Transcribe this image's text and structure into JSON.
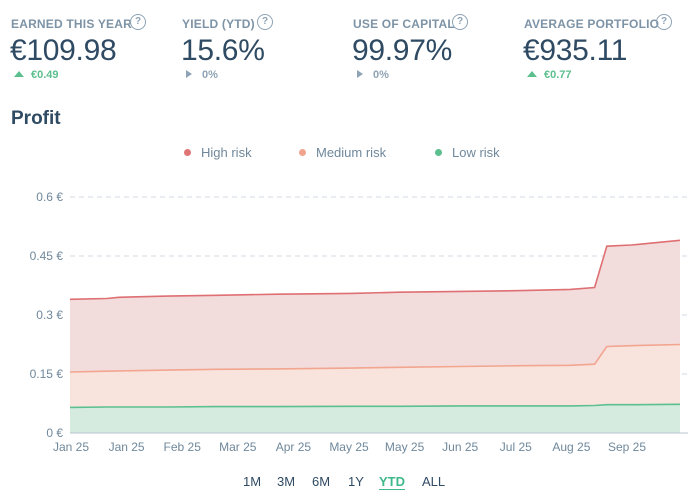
{
  "stats": [
    {
      "label": "EARNED THIS YEAR",
      "value": "€109.98",
      "change": "€0.49",
      "trend": "up"
    },
    {
      "label": "YIELD (YTD)",
      "value": "15.6%",
      "change": "0%",
      "trend": "flat"
    },
    {
      "label": "USE OF CAPITAL",
      "value": "99.97%",
      "change": "0%",
      "trend": "flat"
    },
    {
      "label": "AVERAGE PORTFOLIO",
      "value": "€935.11",
      "change": "€0.77",
      "trend": "up"
    }
  ],
  "help_glyph": "?",
  "section_title": "Profit",
  "legend": [
    {
      "label": "High risk",
      "color": "#e07575"
    },
    {
      "label": "Medium risk",
      "color": "#f0a48e"
    },
    {
      "label": "Low risk",
      "color": "#5cbf8e"
    }
  ],
  "range_buttons": [
    {
      "label": "1M",
      "active": false
    },
    {
      "label": "3M",
      "active": false
    },
    {
      "label": "6M",
      "active": false
    },
    {
      "label": "1Y",
      "active": false
    },
    {
      "label": "YTD",
      "active": true
    },
    {
      "label": "ALL",
      "active": false
    }
  ],
  "chart_data": {
    "type": "area",
    "stacked": true,
    "title": "",
    "xlabel": "",
    "ylabel": "",
    "ylim": [
      0,
      0.6
    ],
    "yticks": [
      "0 €",
      "0.15 €",
      "0.3 €",
      "0.45 €",
      "0.6 €"
    ],
    "ytick_values": [
      0,
      0.15,
      0.3,
      0.45,
      0.6
    ],
    "xticks": [
      "Jan 25",
      "Jan 25",
      "Feb 25",
      "Mar 25",
      "Apr 25",
      "May 25",
      "May 25",
      "Jun 25",
      "Jul 25",
      "Aug 25",
      "Sep 25"
    ],
    "grid": true,
    "legend_position": "top-center",
    "x": [
      0,
      6,
      8,
      16,
      24,
      34,
      46,
      54,
      64,
      74,
      82,
      86,
      88,
      92,
      100
    ],
    "series": [
      {
        "name": "Low risk",
        "color": "#5cbf8e",
        "values": [
          0.065,
          0.066,
          0.066,
          0.066,
          0.067,
          0.067,
          0.068,
          0.068,
          0.069,
          0.069,
          0.069,
          0.07,
          0.072,
          0.072,
          0.073
        ]
      },
      {
        "name": "Medium risk",
        "color": "#f0a48e",
        "values": [
          0.155,
          0.157,
          0.158,
          0.16,
          0.162,
          0.163,
          0.165,
          0.167,
          0.169,
          0.171,
          0.172,
          0.175,
          0.22,
          0.222,
          0.225
        ]
      },
      {
        "name": "High risk",
        "color": "#e07575",
        "values": [
          0.34,
          0.342,
          0.345,
          0.348,
          0.35,
          0.353,
          0.355,
          0.358,
          0.36,
          0.362,
          0.365,
          0.37,
          0.475,
          0.478,
          0.49
        ]
      }
    ],
    "range_note": ""
  }
}
